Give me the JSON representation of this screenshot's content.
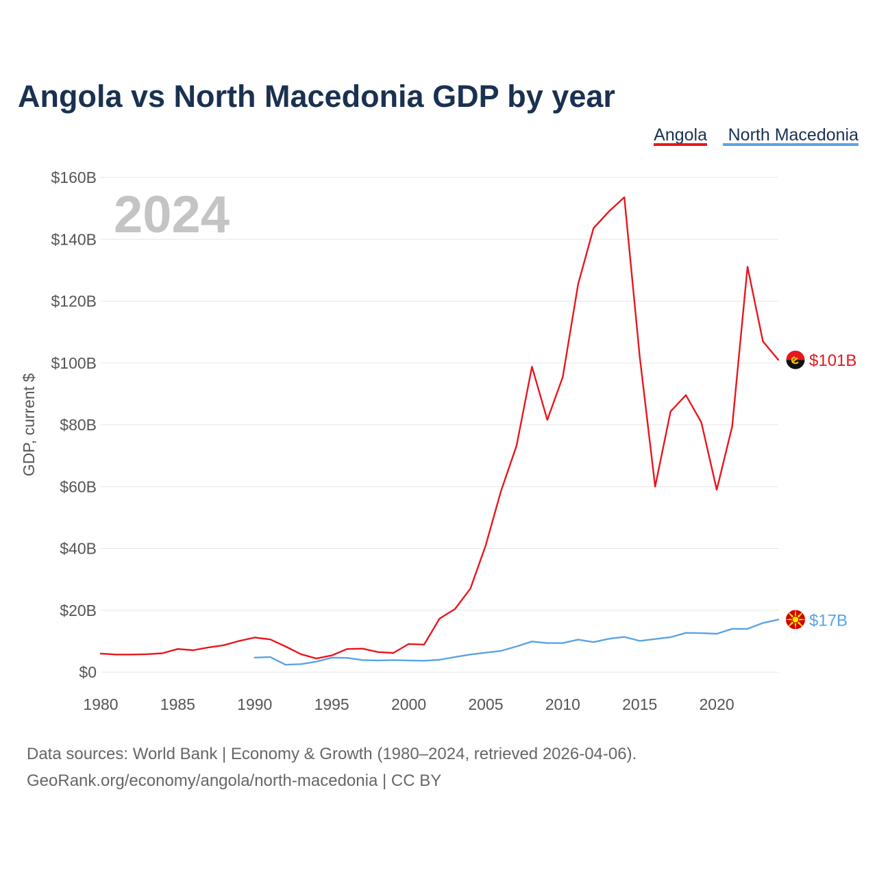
{
  "chart_data": {
    "type": "line",
    "title": "Angola vs North Macedonia GDP by year",
    "year_display": "2024",
    "ylabel": "GDP, current $",
    "xlabel": "",
    "xlim": [
      1980,
      2024
    ],
    "ylim": [
      0,
      160
    ],
    "x_ticks": [
      1980,
      1985,
      1990,
      1995,
      2000,
      2005,
      2010,
      2015,
      2020
    ],
    "x_tick_labels": [
      "1980",
      "1985",
      "1990",
      "1995",
      "2000",
      "2005",
      "2010",
      "2015",
      "2020"
    ],
    "y_ticks": [
      0,
      20,
      40,
      60,
      80,
      100,
      120,
      140,
      160
    ],
    "y_tick_labels": [
      "$0",
      "$20B",
      "$40B",
      "$60B",
      "$80B",
      "$100B",
      "$120B",
      "$140B",
      "$160B"
    ],
    "legend_position": "top-right",
    "series": [
      {
        "name": "Angola",
        "color": "#e8161d",
        "end_label": "$101B",
        "flag_icon": "angola-flag-icon",
        "x": [
          1980,
          1981,
          1982,
          1983,
          1984,
          1985,
          1986,
          1987,
          1988,
          1989,
          1990,
          1991,
          1992,
          1993,
          1994,
          1995,
          1996,
          1997,
          1998,
          1999,
          2000,
          2001,
          2002,
          2003,
          2004,
          2005,
          2006,
          2007,
          2008,
          2009,
          2010,
          2011,
          2012,
          2013,
          2014,
          2015,
          2016,
          2017,
          2018,
          2019,
          2020,
          2021,
          2022,
          2023,
          2024
        ],
        "values": [
          6.0,
          5.7,
          5.7,
          5.8,
          6.1,
          7.5,
          7.1,
          8.0,
          8.7,
          10.1,
          11.2,
          10.6,
          8.3,
          5.8,
          4.4,
          5.4,
          7.5,
          7.6,
          6.5,
          6.2,
          9.1,
          8.9,
          17.3,
          20.4,
          27.0,
          41.0,
          58.7,
          73.2,
          98.8,
          81.6,
          95.4,
          125.5,
          143.6,
          149.0,
          153.6,
          102.0,
          60.0,
          84.3,
          89.6,
          80.8,
          59.0,
          79.4,
          131.1,
          107.0,
          101.0
        ]
      },
      {
        "name": "North Macedonia",
        "color": "#5aa3e4",
        "end_label": "$17B",
        "flag_icon": "north-macedonia-flag-icon",
        "x": [
          1990,
          1991,
          1992,
          1993,
          1994,
          1995,
          1996,
          1997,
          1998,
          1999,
          2000,
          2001,
          2002,
          2003,
          2004,
          2005,
          2006,
          2007,
          2008,
          2009,
          2010,
          2011,
          2012,
          2013,
          2014,
          2015,
          2016,
          2017,
          2018,
          2019,
          2020,
          2021,
          2022,
          2023,
          2024
        ],
        "values": [
          4.7,
          4.9,
          2.4,
          2.6,
          3.4,
          4.7,
          4.6,
          3.9,
          3.8,
          3.9,
          3.8,
          3.7,
          4.0,
          4.9,
          5.7,
          6.3,
          6.9,
          8.3,
          9.9,
          9.4,
          9.4,
          10.5,
          9.7,
          10.8,
          11.4,
          10.1,
          10.7,
          11.3,
          12.7,
          12.6,
          12.4,
          14.0,
          14.0,
          15.9,
          17.0
        ]
      }
    ]
  },
  "source": {
    "line1": "Data sources: World Bank | Economy & Growth (1980–2024, retrieved 2026-04-06).",
    "line2": "GeoRank.org/economy/angola/north-macedonia | CC BY"
  }
}
